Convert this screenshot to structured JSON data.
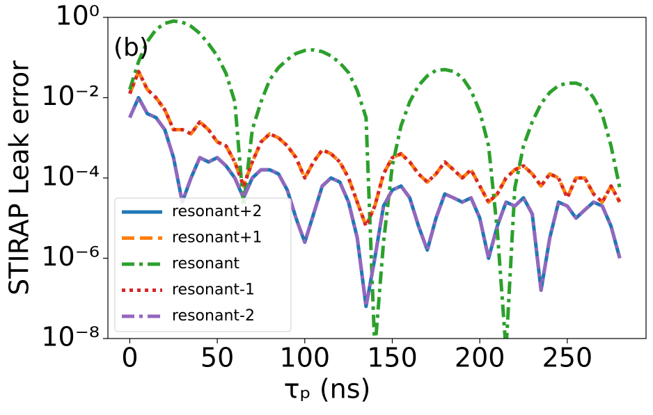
{
  "chart_data": {
    "type": "line",
    "xlabel": "τₚ (ns)",
    "ylabel": "STIRAP Leak error",
    "annotation": "(b)",
    "log_y": true,
    "legend": "lower left",
    "xlim": [
      -12.5,
      295
    ],
    "ylim": [
      1e-08,
      1
    ],
    "xticks": [
      0,
      50,
      100,
      150,
      200,
      250
    ],
    "yticks": [
      {
        "value": 1,
        "label": "10⁰"
      },
      {
        "value": 0.01,
        "label": "10⁻²"
      },
      {
        "value": 0.0001,
        "label": "10⁻⁴"
      },
      {
        "value": 1e-06,
        "label": "10⁻⁶"
      },
      {
        "value": 1e-08,
        "label": "10⁻⁸"
      }
    ],
    "x": [
      0,
      5,
      10,
      15,
      20,
      25,
      30,
      35,
      40,
      45,
      50,
      55,
      60,
      65,
      70,
      75,
      80,
      85,
      90,
      95,
      100,
      105,
      110,
      115,
      120,
      125,
      130,
      135,
      140,
      145,
      150,
      155,
      160,
      165,
      170,
      175,
      180,
      185,
      190,
      195,
      200,
      205,
      210,
      215,
      220,
      225,
      230,
      235,
      240,
      245,
      250,
      255,
      260,
      265,
      270,
      275,
      280
    ],
    "series": [
      {
        "name": "resonant+2",
        "color": "#1f77b4",
        "linestyle": "solid",
        "values": [
          0.0032,
          0.01,
          0.004,
          0.0032,
          0.0016,
          0.00032,
          2.5e-05,
          0.0001,
          0.00032,
          0.00025,
          0.00032,
          0.0002,
          0.0001,
          3.2e-05,
          0.0001,
          0.00016,
          0.00016,
          0.000126,
          5e-05,
          1e-05,
          2.5e-06,
          1.26e-05,
          6.3e-05,
          0.0001,
          7.9e-05,
          2.5e-05,
          3.2e-06,
          6.3e-08,
          1e-06,
          2e-05,
          5e-05,
          6.3e-05,
          3.2e-05,
          6.3e-06,
          1.6e-06,
          1e-05,
          4e-05,
          3.2e-05,
          2.5e-05,
          3.2e-05,
          1e-05,
          1e-06,
          6.3e-06,
          2.5e-05,
          2e-05,
          3.2e-05,
          1.26e-05,
          1.6e-07,
          3.2e-06,
          2.5e-05,
          2e-05,
          1e-05,
          1.6e-05,
          2.5e-05,
          2e-05,
          6.3e-06,
          1e-06
        ]
      },
      {
        "name": "resonant+1",
        "color": "#ff7f0e",
        "linestyle": "dashed",
        "values": [
          0.0126,
          0.045,
          0.016,
          0.01,
          0.005,
          0.0016,
          0.0016,
          0.00126,
          0.0025,
          0.0016,
          0.00079,
          0.00063,
          0.00025,
          6.3e-05,
          0.00025,
          0.00079,
          0.00126,
          0.001,
          0.00063,
          0.00032,
          0.0001,
          0.00025,
          0.0005,
          0.0004,
          0.00025,
          0.0001,
          2.5e-05,
          6.3e-06,
          2e-05,
          0.000126,
          0.00032,
          0.0004,
          0.00025,
          0.000126,
          7.9e-05,
          0.000126,
          0.00025,
          0.00016,
          0.0001,
          0.00016,
          6.3e-05,
          2.5e-05,
          4e-05,
          0.0001,
          0.00016,
          0.0002,
          0.000126,
          6.3e-05,
          0.000126,
          0.0001,
          3.2e-05,
          0.0001,
          0.0001,
          4e-05,
          2.5e-05,
          6.3e-05,
          2.5e-05
        ]
      },
      {
        "name": "resonant",
        "color": "#2ca02c",
        "linestyle": "dashdot",
        "values": [
          0.016,
          0.079,
          0.25,
          0.5,
          0.71,
          0.81,
          0.76,
          0.6,
          0.4,
          0.22,
          0.11,
          0.04,
          0.0079,
          2e-05,
          0.0016,
          0.0079,
          0.028,
          0.056,
          0.089,
          0.126,
          0.15,
          0.155,
          0.14,
          0.11,
          0.074,
          0.042,
          0.015,
          0.0032,
          5e-09,
          2.5e-06,
          0.0002,
          0.002,
          0.0079,
          0.02,
          0.035,
          0.048,
          0.05,
          0.045,
          0.032,
          0.015,
          0.0045,
          0.00063,
          5e-06,
          5e-09,
          5.6e-05,
          0.00063,
          0.0025,
          0.0071,
          0.0135,
          0.02,
          0.023,
          0.023,
          0.019,
          0.01,
          0.0038,
          0.00063,
          5.6e-05
        ]
      },
      {
        "name": "resonant-1",
        "color": "#d62728",
        "linestyle": "dotted",
        "values": [
          0.0126,
          0.045,
          0.016,
          0.01,
          0.005,
          0.0016,
          0.0016,
          0.00126,
          0.0025,
          0.0016,
          0.00079,
          0.00063,
          0.00025,
          6.3e-05,
          0.00025,
          0.00079,
          0.00126,
          0.001,
          0.00063,
          0.00032,
          0.0001,
          0.00025,
          0.0005,
          0.0004,
          0.00025,
          0.0001,
          2.5e-05,
          6.3e-06,
          2e-05,
          0.000126,
          0.00032,
          0.0004,
          0.00025,
          0.000126,
          7.9e-05,
          0.000126,
          0.00025,
          0.00016,
          0.0001,
          0.00016,
          6.3e-05,
          2.5e-05,
          4e-05,
          0.0001,
          0.00016,
          0.0002,
          0.000126,
          6.3e-05,
          0.000126,
          0.0001,
          3.2e-05,
          0.0001,
          0.0001,
          4e-05,
          2.5e-05,
          6.3e-05,
          2.5e-05
        ]
      },
      {
        "name": "resonant-2",
        "color": "#9467bd",
        "linestyle": "dashdot",
        "values": [
          0.0032,
          0.01,
          0.004,
          0.0032,
          0.0016,
          0.00032,
          2.5e-05,
          0.0001,
          0.00032,
          0.00025,
          0.00032,
          0.0002,
          0.0001,
          3.2e-05,
          0.0001,
          0.00016,
          0.00016,
          0.000126,
          5e-05,
          1e-05,
          2.5e-06,
          1.26e-05,
          6.3e-05,
          0.0001,
          7.9e-05,
          2.5e-05,
          3.2e-06,
          6.3e-08,
          1e-06,
          2e-05,
          5e-05,
          6.3e-05,
          3.2e-05,
          6.3e-06,
          1.6e-06,
          1e-05,
          4e-05,
          3.2e-05,
          2.5e-05,
          3.2e-05,
          1e-05,
          1e-06,
          6.3e-06,
          2.5e-05,
          2e-05,
          3.2e-05,
          1.26e-05,
          1.6e-07,
          3.2e-06,
          2.5e-05,
          2e-05,
          1e-05,
          1.6e-05,
          2.5e-05,
          2e-05,
          6.3e-06,
          1e-06
        ]
      }
    ]
  }
}
